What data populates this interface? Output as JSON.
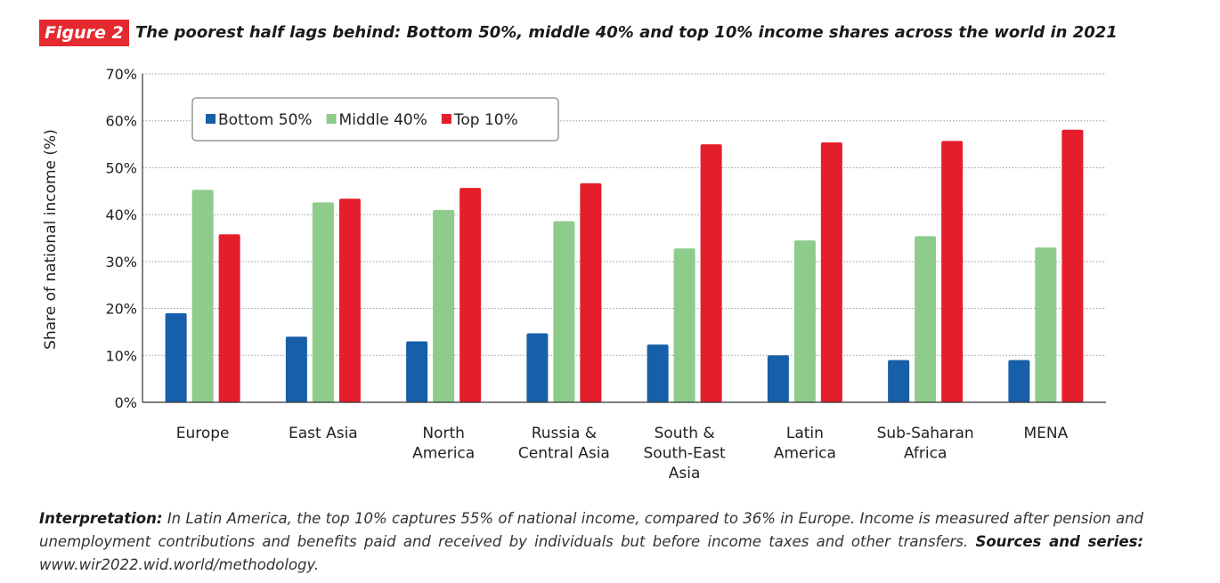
{
  "figure": {
    "tag": "Figure 2",
    "title": "The poorest half lags behind: Bottom 50%, middle 40% and top 10% income shares across the world in 2021"
  },
  "caption": {
    "interpretation_label": "Interpretation:",
    "interpretation_text": " In Latin America, the top 10% captures 55% of national income, compared to 36% in Europe. Income is measured after pension and unemployment contributions and benefits paid and received by individuals but before income taxes and other transfers. ",
    "sources_label": "Sources and series:",
    "sources_text": " www.wir2022.wid.world/methodology."
  },
  "colors": {
    "bottom50": "#175fa8",
    "middle40": "#8dcc8b",
    "top10": "#e51e2b",
    "figure_tag": "#e52a2f"
  },
  "chart_data": {
    "type": "bar",
    "title": "",
    "xlabel": "",
    "ylabel": "Share of national income (%)",
    "ylim": [
      0,
      70
    ],
    "yticks": [
      0,
      10,
      20,
      30,
      40,
      50,
      60,
      70
    ],
    "ytick_labels": [
      "0%",
      "10%",
      "20%",
      "30%",
      "40%",
      "50%",
      "60%",
      "70%"
    ],
    "grid": true,
    "legend_position": "top-left",
    "categories": [
      [
        "Europe"
      ],
      [
        "East Asia"
      ],
      [
        "North",
        "America"
      ],
      [
        "Russia &",
        "Central Asia"
      ],
      [
        "South &",
        "South-East",
        "Asia"
      ],
      [
        "Latin",
        "America"
      ],
      [
        "Sub-Saharan",
        "Africa"
      ],
      [
        "MENA"
      ]
    ],
    "series": [
      {
        "name": "Bottom 50%",
        "key": "bottom50",
        "values": [
          19,
          14,
          13,
          14.7,
          12.3,
          10,
          9,
          9
        ]
      },
      {
        "name": "Middle 40%",
        "key": "middle40",
        "values": [
          45.3,
          42.6,
          41,
          38.6,
          32.8,
          34.5,
          35.4,
          33
        ]
      },
      {
        "name": "Top 10%",
        "key": "top10",
        "values": [
          35.8,
          43.4,
          45.7,
          46.7,
          55,
          55.4,
          55.7,
          58.1
        ]
      }
    ]
  }
}
